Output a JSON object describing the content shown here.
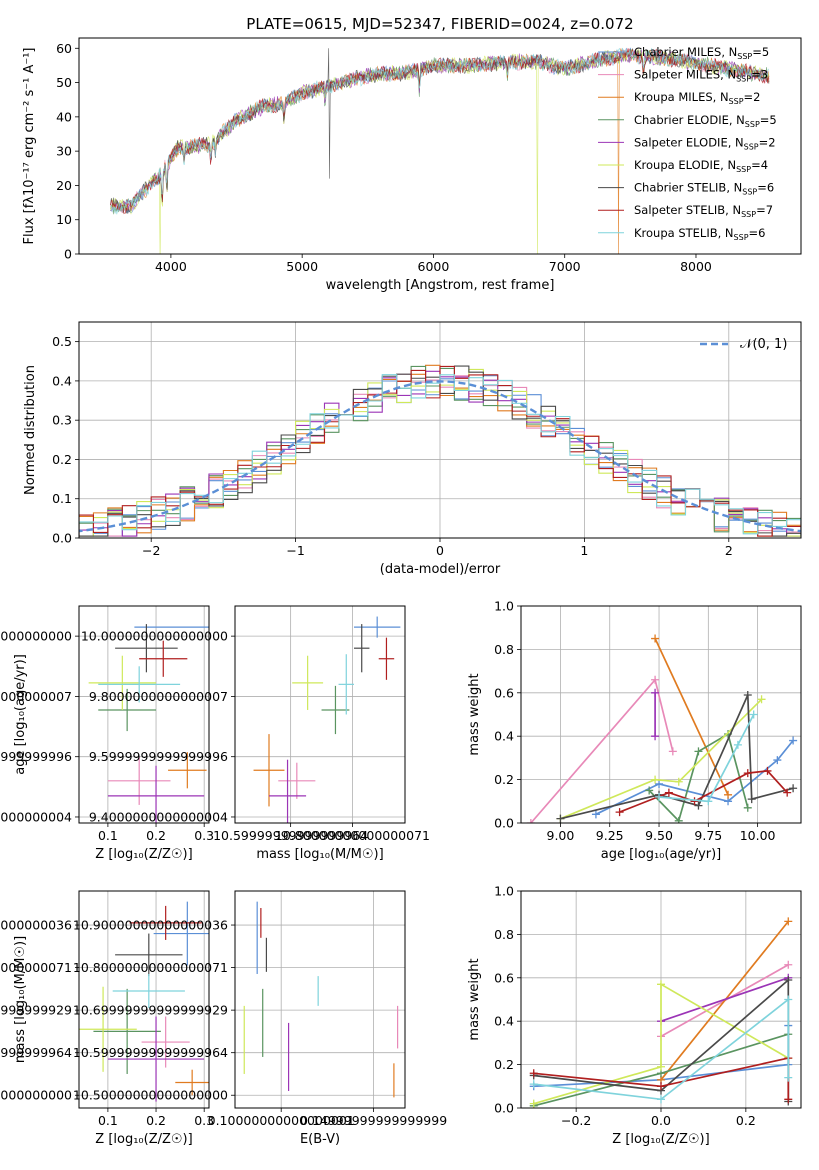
{
  "figure_title": "PLATE=0615, MJD=52347, FIBERID=0024, z=0.072",
  "colors": {
    "Chabrier MILES": "#5b8fd6",
    "Salpeter MILES": "#e889b8",
    "Kroupa MILES": "#e07b20",
    "Chabrier ELODIE": "#5a9460",
    "Salpeter ELODIE": "#9b34b6",
    "Kroupa ELODIE": "#cfe85a",
    "Chabrier STELIB": "#4a4a4a",
    "Salpeter STELIB": "#b01f1f",
    "Kroupa STELIB": "#7fd3dc"
  },
  "chart_data": [
    {
      "id": "spectrum",
      "type": "line",
      "title": "PLATE=0615, MJD=52347, FIBERID=0024, z=0.072",
      "xlabel": "wavelength [Angstrom, rest frame]",
      "ylabel": "Flux [fλ10⁻¹⁷ erg cm⁻² s⁻¹ A⁻¹]",
      "xlim": [
        3300,
        8800
      ],
      "ylim": [
        0,
        63
      ],
      "xticks": [
        4000,
        5000,
        6000,
        7000,
        8000
      ],
      "yticks": [
        0,
        10,
        20,
        30,
        40,
        50,
        60
      ],
      "grid": false,
      "legend_position": "top-right",
      "legend": [
        {
          "series": "Chabrier MILES",
          "label": "Chabrier MILES, N",
          "sub": "SSP",
          "tail": "=5"
        },
        {
          "series": "Salpeter MILES",
          "label": "Salpeter MILES, N",
          "sub": "SSP",
          "tail": "=3"
        },
        {
          "series": "Kroupa MILES",
          "label": "Kroupa MILES, N",
          "sub": "SSP",
          "tail": "=2"
        },
        {
          "series": "Chabrier ELODIE",
          "label": "Chabrier ELODIE, N",
          "sub": "SSP",
          "tail": "=5"
        },
        {
          "series": "Salpeter ELODIE",
          "label": "Salpeter ELODIE, N",
          "sub": "SSP",
          "tail": "=2"
        },
        {
          "series": "Kroupa ELODIE",
          "label": "Kroupa ELODIE, N",
          "sub": "SSP",
          "tail": "=4"
        },
        {
          "series": "Chabrier STELIB",
          "label": "Chabrier STELIB, N",
          "sub": "SSP",
          "tail": "=6"
        },
        {
          "series": "Salpeter STELIB",
          "label": "Salpeter STELIB, N",
          "sub": "SSP",
          "tail": "=7"
        },
        {
          "series": "Kroupa STELIB",
          "label": "Kroupa STELIB, N",
          "sub": "SSP",
          "tail": "=6"
        }
      ],
      "continuum_anchors": [
        [
          3540,
          14
        ],
        [
          3700,
          14
        ],
        [
          3880,
          22
        ],
        [
          3920,
          23
        ],
        [
          4050,
          31
        ],
        [
          4300,
          32
        ],
        [
          4500,
          39
        ],
        [
          4700,
          43
        ],
        [
          4860,
          44
        ],
        [
          5000,
          47
        ],
        [
          5200,
          49
        ],
        [
          5500,
          52
        ],
        [
          5800,
          53
        ],
        [
          6000,
          55
        ],
        [
          6300,
          55
        ],
        [
          6600,
          56
        ],
        [
          6800,
          56
        ],
        [
          7000,
          54
        ],
        [
          7300,
          57
        ],
        [
          7500,
          58
        ],
        [
          7800,
          57
        ],
        [
          8100,
          55
        ],
        [
          8400,
          53
        ],
        [
          8550,
          52
        ]
      ],
      "absorption_features": [
        [
          3934,
          10
        ],
        [
          3969,
          8
        ],
        [
          4101,
          4
        ],
        [
          4305,
          5
        ],
        [
          4340,
          4
        ],
        [
          4861,
          5
        ],
        [
          5175,
          4
        ],
        [
          5893,
          6
        ],
        [
          6563,
          4
        ],
        [
          7600,
          5
        ]
      ],
      "spikes": [
        [
          5200,
          60
        ],
        [
          5210,
          22
        ]
      ],
      "drops": [
        {
          "series": "Kroupa ELODIE",
          "x": 3920
        },
        {
          "series": "Kroupa ELODIE",
          "x": 6790
        },
        {
          "series": "Kroupa MILES",
          "x": 7410
        }
      ]
    },
    {
      "id": "residual_histogram",
      "type": "bar",
      "xlabel": "(data-model)/error",
      "ylabel": "Normed distribution",
      "xlim": [
        -2.5,
        2.5
      ],
      "ylim": [
        0,
        0.55
      ],
      "xticks": [
        -2,
        -1,
        0,
        1,
        2
      ],
      "yticks": [
        0.0,
        0.1,
        0.2,
        0.3,
        0.4,
        0.5
      ],
      "grid": true,
      "bin_width": 0.1,
      "legend_position": "top-right",
      "legend_label": "𝒩(0, 1)",
      "reference_curve": {
        "type": "normal",
        "mu": 0,
        "sigma": 1
      }
    },
    {
      "id": "z_vs_age",
      "type": "scatter",
      "xlabel": "Z [log₁₀(Z/Z☉)]",
      "ylabel": "age  [log₁₀(age/yr)]",
      "xlim": [
        0.04,
        0.31
      ],
      "ylim": [
        9.38,
        10.1
      ],
      "xticks": [
        0.1,
        0.2,
        0.3
      ],
      "yticks": [
        9.4,
        9.6,
        9.8,
        10.0
      ],
      "grid": true,
      "points": [
        {
          "series": "Chabrier MILES",
          "x": 0.235,
          "y": 10.03,
          "xerr": 0.08,
          "yerr": 0.0
        },
        {
          "series": "Salpeter MILES",
          "x": 0.165,
          "y": 9.52,
          "xerr": 0.065,
          "yerr": 0.08
        },
        {
          "series": "Kroupa MILES",
          "x": 0.265,
          "y": 9.555,
          "xerr": 0.04,
          "yerr": 0.06
        },
        {
          "series": "Chabrier ELODIE",
          "x": 0.14,
          "y": 9.755,
          "xerr": 0.06,
          "yerr": 0.07
        },
        {
          "series": "Salpeter ELODIE",
          "x": 0.2,
          "y": 9.47,
          "xerr": 0.1,
          "yerr": 0.1
        },
        {
          "series": "Kroupa ELODIE",
          "x": 0.13,
          "y": 9.845,
          "xerr": 0.07,
          "yerr": 0.09
        },
        {
          "series": "Chabrier STELIB",
          "x": 0.18,
          "y": 9.96,
          "xerr": 0.065,
          "yerr": 0.08
        },
        {
          "series": "Salpeter STELIB",
          "x": 0.215,
          "y": 9.925,
          "xerr": 0.05,
          "yerr": 0.06
        },
        {
          "series": "Kroupa STELIB",
          "x": 0.165,
          "y": 9.84,
          "xerr": 0.085,
          "yerr": 0.06
        }
      ]
    },
    {
      "id": "mass_vs_age",
      "type": "scatter",
      "xlabel": "mass [log₁₀(M/M☉)]",
      "ylabel": "",
      "xlim": [
        10.42,
        10.97
      ],
      "ylim": [
        9.38,
        10.1
      ],
      "xticks": [
        10.6,
        10.8
      ],
      "yticks": [
        9.4,
        9.6,
        9.8,
        10.0
      ],
      "grid": true,
      "points": [
        {
          "series": "Chabrier MILES",
          "x": 10.88,
          "y": 10.03,
          "xerr": 0.075,
          "yerr": 0.035
        },
        {
          "series": "Salpeter MILES",
          "x": 10.62,
          "y": 9.52,
          "xerr": 0.06,
          "yerr": 0.06
        },
        {
          "series": "Kroupa MILES",
          "x": 10.53,
          "y": 9.555,
          "xerr": 0.05,
          "yerr": 0.12
        },
        {
          "series": "Chabrier ELODIE",
          "x": 10.745,
          "y": 9.755,
          "xerr": 0.045,
          "yerr": 0.08
        },
        {
          "series": "Salpeter ELODIE",
          "x": 10.59,
          "y": 9.47,
          "xerr": 0.06,
          "yerr": 0.12
        },
        {
          "series": "Kroupa ELODIE",
          "x": 10.655,
          "y": 9.845,
          "xerr": 0.05,
          "yerr": 0.09
        },
        {
          "series": "Chabrier STELIB",
          "x": 10.83,
          "y": 9.96,
          "xerr": 0.025,
          "yerr": 0.08
        },
        {
          "series": "Salpeter STELIB",
          "x": 10.91,
          "y": 9.925,
          "xerr": 0.025,
          "yerr": 0.07
        },
        {
          "series": "Kroupa STELIB",
          "x": 10.78,
          "y": 9.84,
          "xerr": 0.025,
          "yerr": 0.1
        }
      ]
    },
    {
      "id": "age_vs_mass_weight",
      "type": "line",
      "xlabel": "age  [log₁₀(age/yr)]",
      "ylabel": "mass weight",
      "xlim": [
        8.8,
        10.22
      ],
      "ylim": [
        0,
        1.0
      ],
      "xticks": [
        9.0,
        9.25,
        9.5,
        9.75,
        10.0
      ],
      "yticks": [
        0.0,
        0.2,
        0.4,
        0.6,
        0.8,
        1.0
      ],
      "grid": true,
      "series": [
        {
          "name": "Chabrier MILES",
          "x": [
            9.18,
            9.5,
            9.85,
            10.1,
            10.18
          ],
          "y": [
            0.04,
            0.18,
            0.1,
            0.29,
            0.38
          ]
        },
        {
          "name": "Salpeter MILES",
          "x": [
            8.85,
            9.48,
            9.57
          ],
          "y": [
            0.0,
            0.66,
            0.33
          ]
        },
        {
          "name": "Kroupa MILES",
          "x": [
            9.48,
            9.85
          ],
          "y": [
            0.85,
            0.13
          ]
        },
        {
          "name": "Chabrier ELODIE",
          "x": [
            9.45,
            9.6,
            9.7,
            9.85,
            9.95
          ],
          "y": [
            0.15,
            0.01,
            0.33,
            0.41,
            0.07
          ]
        },
        {
          "name": "Salpeter ELODIE",
          "x": [
            9.48,
            9.48
          ],
          "y": [
            0.4,
            0.6
          ]
        },
        {
          "name": "Kroupa ELODIE",
          "x": [
            9.0,
            9.48,
            9.6,
            10.02
          ],
          "y": [
            0.02,
            0.2,
            0.19,
            0.57
          ]
        },
        {
          "name": "Chabrier STELIB",
          "x": [
            9.0,
            9.5,
            9.7,
            9.95,
            9.97,
            10.18
          ],
          "y": [
            0.02,
            0.13,
            0.08,
            0.59,
            0.11,
            0.16
          ]
        },
        {
          "name": "Salpeter STELIB",
          "x": [
            9.3,
            9.55,
            9.68,
            9.95,
            10.05,
            10.15
          ],
          "y": [
            0.05,
            0.14,
            0.1,
            0.23,
            0.24,
            0.14
          ]
        },
        {
          "name": "Kroupa STELIB",
          "x": [
            9.5,
            9.75,
            9.9,
            9.98
          ],
          "y": [
            0.12,
            0.1,
            0.36,
            0.5
          ]
        }
      ]
    },
    {
      "id": "z_vs_mass",
      "type": "scatter",
      "xlabel": "Z [log₁₀(Z/Z☉)]",
      "ylabel": "mass [log₁₀(M/M☉)]",
      "xlim": [
        0.04,
        0.31
      ],
      "ylim": [
        10.47,
        10.98
      ],
      "xticks": [
        0.1,
        0.2,
        0.3
      ],
      "yticks": [
        10.5,
        10.6,
        10.7,
        10.8,
        10.9
      ],
      "grid": true,
      "points": [
        {
          "series": "Chabrier MILES",
          "x": 0.265,
          "y": 10.88,
          "xerr": 0.07,
          "yerr": 0.075
        },
        {
          "series": "Salpeter MILES",
          "x": 0.22,
          "y": 10.625,
          "xerr": 0.05,
          "yerr": 0.06
        },
        {
          "series": "Kroupa MILES",
          "x": 0.275,
          "y": 10.53,
          "xerr": 0.035,
          "yerr": 0.03
        },
        {
          "series": "Chabrier ELODIE",
          "x": 0.14,
          "y": 10.65,
          "xerr": 0.07,
          "yerr": 0.1
        },
        {
          "series": "Salpeter ELODIE",
          "x": 0.2,
          "y": 10.585,
          "xerr": 0.1,
          "yerr": 0.1
        },
        {
          "series": "Kroupa ELODIE",
          "x": 0.09,
          "y": 10.655,
          "xerr": 0.07,
          "yerr": 0.1
        },
        {
          "series": "Chabrier STELIB",
          "x": 0.185,
          "y": 10.83,
          "xerr": 0.07,
          "yerr": 0.05
        },
        {
          "series": "Salpeter STELIB",
          "x": 0.22,
          "y": 10.905,
          "xerr": 0.075,
          "yerr": 0.04
        },
        {
          "series": "Kroupa STELIB",
          "x": 0.185,
          "y": 10.745,
          "xerr": 0.075,
          "yerr": 0.04
        }
      ]
    },
    {
      "id": "ebv_vs_mass",
      "type": "scatter",
      "xlabel": "E(B-V)",
      "ylabel": "",
      "xlim": [
        0.075,
        0.167
      ],
      "ylim": [
        10.47,
        10.98
      ],
      "xticks": [
        0.1,
        0.15
      ],
      "yticks": [
        10.5,
        10.6,
        10.7,
        10.8,
        10.9
      ],
      "grid": true,
      "points": [
        {
          "series": "Chabrier MILES",
          "x": 0.087,
          "y": 10.87,
          "xerr": 0.0,
          "yerr": 0.085
        },
        {
          "series": "Salpeter MILES",
          "x": 0.163,
          "y": 10.66,
          "xerr": 0.0,
          "yerr": 0.05
        },
        {
          "series": "Kroupa MILES",
          "x": 0.161,
          "y": 10.535,
          "xerr": 0.0,
          "yerr": 0.04
        },
        {
          "series": "Chabrier ELODIE",
          "x": 0.09,
          "y": 10.67,
          "xerr": 0.0,
          "yerr": 0.08
        },
        {
          "series": "Salpeter ELODIE",
          "x": 0.104,
          "y": 10.59,
          "xerr": 0.0,
          "yerr": 0.08
        },
        {
          "series": "Kroupa ELODIE",
          "x": 0.08,
          "y": 10.63,
          "xerr": 0.0,
          "yerr": 0.08
        },
        {
          "series": "Chabrier STELIB",
          "x": 0.092,
          "y": 10.83,
          "xerr": 0.0,
          "yerr": 0.04
        },
        {
          "series": "Salpeter STELIB",
          "x": 0.089,
          "y": 10.905,
          "xerr": 0.0,
          "yerr": 0.035
        },
        {
          "series": "Kroupa STELIB",
          "x": 0.12,
          "y": 10.745,
          "xerr": 0.0,
          "yerr": 0.035
        }
      ]
    },
    {
      "id": "z_vs_mass_weight",
      "type": "line",
      "xlabel": "Z [log₁₀(Z/Z☉)]",
      "ylabel": "mass weight",
      "xlim": [
        -0.33,
        0.33
      ],
      "ylim": [
        0,
        1.0
      ],
      "xticks": [
        -0.2,
        0.0,
        0.2
      ],
      "yticks": [
        0.0,
        0.2,
        0.4,
        0.6,
        0.8,
        1.0
      ],
      "grid": true,
      "series": [
        {
          "name": "Chabrier MILES",
          "x": [
            -0.3,
            0.0,
            0.3,
            0.3
          ],
          "y": [
            0.1,
            0.13,
            0.2,
            0.38
          ]
        },
        {
          "name": "Salpeter MILES",
          "x": [
            0.0,
            0.3
          ],
          "y": [
            0.33,
            0.66
          ]
        },
        {
          "name": "Kroupa MILES",
          "x": [
            0.0,
            0.3
          ],
          "y": [
            0.13,
            0.86
          ]
        },
        {
          "name": "Chabrier ELODIE",
          "x": [
            -0.3,
            0.0,
            0.3
          ],
          "y": [
            0.01,
            0.16,
            0.34
          ]
        },
        {
          "name": "Salpeter ELODIE",
          "x": [
            0.0,
            0.3
          ],
          "y": [
            0.4,
            0.6
          ]
        },
        {
          "name": "Kroupa ELODIE",
          "x": [
            -0.3,
            0.0,
            0.0,
            0.3
          ],
          "y": [
            0.02,
            0.19,
            0.57,
            0.23
          ]
        },
        {
          "name": "Chabrier STELIB",
          "x": [
            -0.3,
            0.0,
            0.3,
            0.3
          ],
          "y": [
            0.15,
            0.08,
            0.59,
            0.03
          ]
        },
        {
          "name": "Salpeter STELIB",
          "x": [
            -0.3,
            0.0,
            0.3,
            0.3
          ],
          "y": [
            0.16,
            0.1,
            0.23,
            0.04
          ]
        },
        {
          "name": "Kroupa STELIB",
          "x": [
            -0.3,
            0.0,
            0.3,
            0.3
          ],
          "y": [
            0.11,
            0.04,
            0.5,
            0.14
          ]
        }
      ]
    }
  ]
}
